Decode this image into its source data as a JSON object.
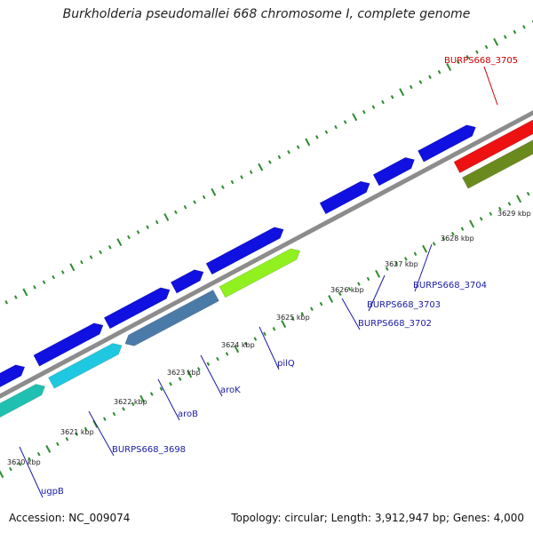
{
  "title": "Burkholderia pseudomallei 668 chromosome I, complete genome",
  "footer": {
    "accession": "Accession: NC_009074",
    "summary": "Topology: circular; Length: 3,912,947 bp; Genes: 4,000"
  },
  "colors": {
    "backbone": "#8c8c8c",
    "tick": "#2e8b2e",
    "label_blue": "#1a1aa6",
    "label_red": "#cc0000",
    "gene_blue": "#1010e0",
    "gene_cyan": "#1ec8e0",
    "gene_teal": "#20c0b0",
    "gene_steel": "#4a7aa8",
    "gene_lime": "#90f020",
    "gene_olive": "#6b8a1e",
    "gene_red": "#ee1111"
  },
  "kbp_ticks": [
    "3620 kbp",
    "3621 kbp",
    "3622 kbp",
    "3623 kbp",
    "3624 kbp",
    "3625 kbp",
    "3626 kbp",
    "3627 kbp",
    "3628 kbp",
    "3629 kbp"
  ],
  "gene_labels": [
    {
      "text": "ugpB",
      "color": "blue"
    },
    {
      "text": "BURPS668_3698",
      "color": "blue"
    },
    {
      "text": "aroB",
      "color": "blue"
    },
    {
      "text": "aroK",
      "color": "blue"
    },
    {
      "text": "pilQ",
      "color": "blue"
    },
    {
      "text": "BURPS668_3702",
      "color": "blue"
    },
    {
      "text": "BURPS668_3703",
      "color": "blue"
    },
    {
      "text": "BURPS668_3704",
      "color": "blue"
    },
    {
      "text": "BURPS668_3705",
      "color": "red"
    }
  ]
}
